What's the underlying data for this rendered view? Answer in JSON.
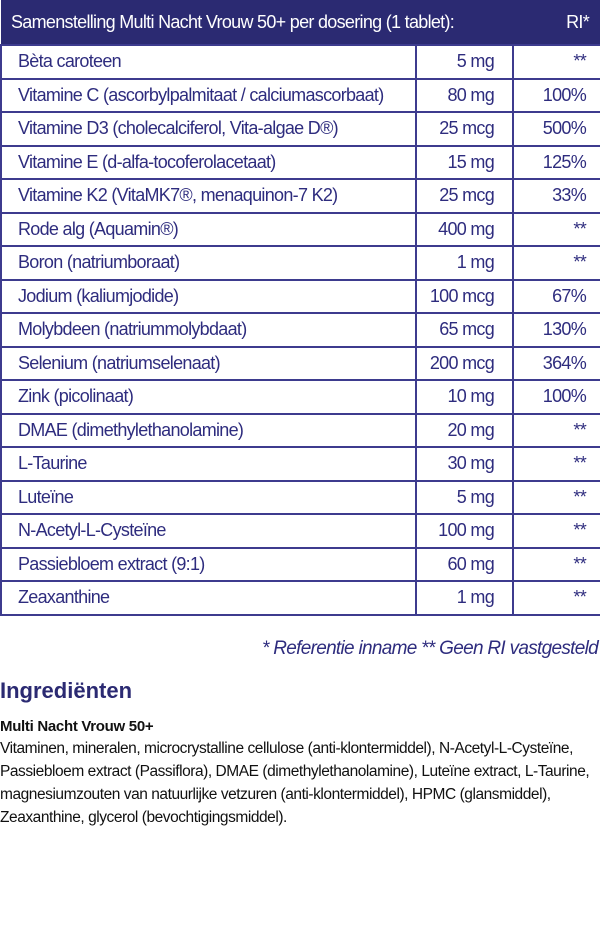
{
  "table": {
    "header": {
      "title": "Samenstelling Multi Nacht Vrouw 50+ per dosering (1 tablet):",
      "ri": "RI*"
    },
    "rows": [
      {
        "name": "Bèta caroteen",
        "amount": "5 mg",
        "ri": "**"
      },
      {
        "name": "Vitamine C (ascorbylpalmitaat / calciumascorbaat)",
        "amount": "80 mg",
        "ri": "100%"
      },
      {
        "name": "Vitamine D3 (cholecalciferol, Vita-algae D®)",
        "amount": "25 mcg",
        "ri": "500%"
      },
      {
        "name": "Vitamine E (d-alfa-tocoferolacetaat)",
        "amount": "15 mg",
        "ri": "125%"
      },
      {
        "name": "Vitamine K2 (VitaMK7®, menaquinon-7 K2)",
        "amount": "25 mcg",
        "ri": "33%"
      },
      {
        "name": "Rode alg (Aquamin®)",
        "amount": "400 mg",
        "ri": "**"
      },
      {
        "name": "Boron (natriumboraat)",
        "amount": "1 mg",
        "ri": "**"
      },
      {
        "name": "Jodium (kaliumjodide)",
        "amount": "100 mcg",
        "ri": "67%"
      },
      {
        "name": "Molybdeen (natriummolybdaat)",
        "amount": "65 mcg",
        "ri": "130%"
      },
      {
        "name": "Selenium (natriumselenaat)",
        "amount": "200 mcg",
        "ri": "364%"
      },
      {
        "name": "Zink (picolinaat)",
        "amount": "10 mg",
        "ri": "100%"
      },
      {
        "name": "DMAE (dimethylethanolamine)",
        "amount": "20 mg",
        "ri": "**"
      },
      {
        "name": "L-Taurine",
        "amount": "30 mg",
        "ri": "**"
      },
      {
        "name": "Luteïne",
        "amount": "5 mg",
        "ri": "**"
      },
      {
        "name": "N-Acetyl-L-Cysteïne",
        "amount": "100 mg",
        "ri": "**"
      },
      {
        "name": "Passiebloem extract (9:1)",
        "amount": "60 mg",
        "ri": "**"
      },
      {
        "name": "Zeaxanthine",
        "amount": "1 mg",
        "ri": "**"
      }
    ]
  },
  "footnote": "* Referentie inname  ** Geen RI vastgesteld",
  "ingredients": {
    "title": "Ingrediënten",
    "product": "Multi Nacht Vrouw 50+",
    "text": "Vitaminen, mineralen, microcrystalline cellulose (anti-klontermiddel), N-Acetyl-L-Cysteïne, Passiebloem extract (Passiflora), DMAE (dimethylethanolamine), Luteïne extract, L-Taurine, magnesiumzouten van natuurlijke vetzuren (anti-klontermiddel), HPMC (glansmiddel), Zeaxanthine, glycerol (bevochtigingsmiddel)."
  }
}
